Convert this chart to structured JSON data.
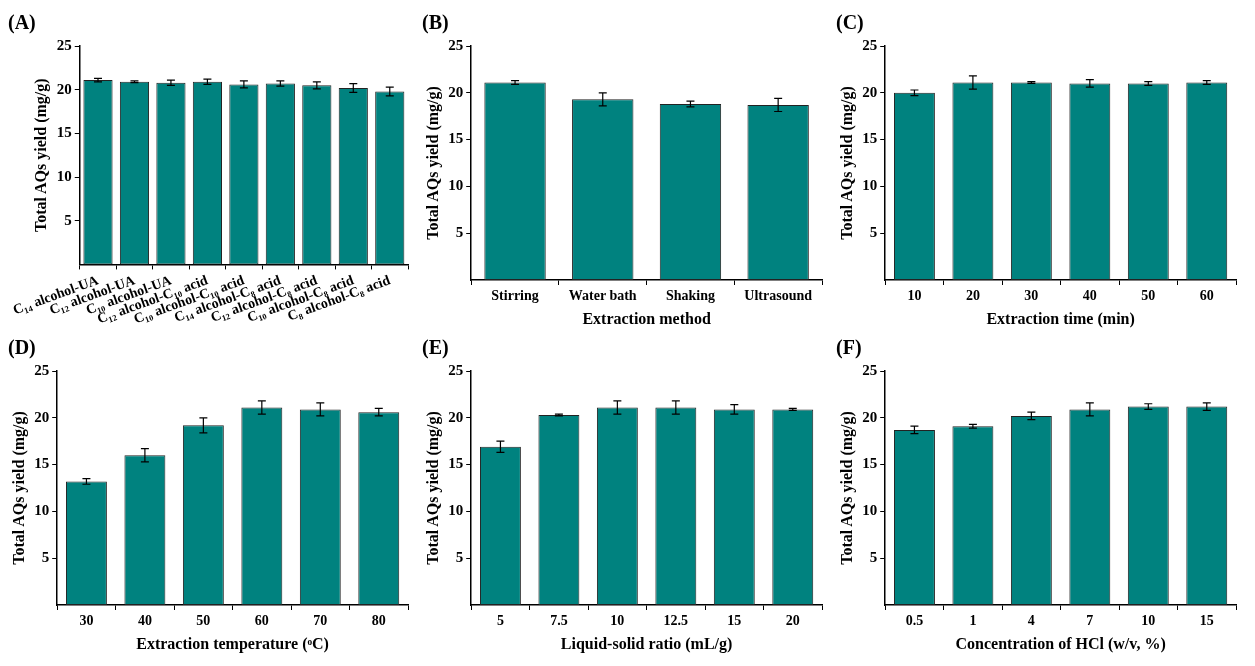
{
  "chart_data": [
    {
      "type": "bar",
      "title": "(A)",
      "ylabel": "Total AQs yield (mg/g)",
      "categories": [
        "C₁₄ alcohol-UA",
        "C₁₂ alcohol-UA",
        "C₁₀ alcohol-UA",
        "C₁₂ alcohol-C₁₀ acid",
        "C₁₀ alcohol-C₁₀ acid",
        "C₁₄ alcohol-C₈ acid",
        "C₁₂ alcohol-C₈ acid",
        "C₁₀ alcohol-C₈ acid",
        "C₈ alcohol-C₈ acid"
      ],
      "values": [
        21.1,
        20.9,
        20.8,
        20.9,
        20.6,
        20.7,
        20.5,
        20.2,
        19.8
      ],
      "errors": [
        0.2,
        0.1,
        0.3,
        0.3,
        0.4,
        0.3,
        0.4,
        0.5,
        0.5
      ],
      "color": "#00827f",
      "ylim": [
        0,
        25
      ],
      "yticks": [
        5,
        10,
        15,
        20,
        25
      ],
      "grid": false,
      "legend": false
    },
    {
      "type": "bar",
      "title": "(B)",
      "ylabel": "Total AQs yield (mg/g)",
      "xlabel": "Extraction method",
      "categories": [
        "Stirring",
        "Water bath",
        "Shaking",
        "Ultrasound"
      ],
      "values": [
        21.1,
        19.3,
        18.8,
        18.7
      ],
      "errors": [
        0.2,
        0.7,
        0.3,
        0.7
      ],
      "color": "#00827f",
      "ylim": [
        0,
        25
      ],
      "yticks": [
        5,
        10,
        15,
        20,
        25
      ],
      "grid": false,
      "legend": false
    },
    {
      "type": "bar",
      "title": "(C)",
      "ylabel": "Total AQs yield (mg/g)",
      "xlabel": "Extraction time (min)",
      "categories": [
        "10",
        "20",
        "30",
        "40",
        "50",
        "60"
      ],
      "values": [
        20.0,
        21.1,
        21.1,
        21.0,
        21.0,
        21.1
      ],
      "errors": [
        0.3,
        0.7,
        0.1,
        0.4,
        0.2,
        0.2
      ],
      "color": "#00827f",
      "ylim": [
        0,
        25
      ],
      "yticks": [
        5,
        10,
        15,
        20,
        25
      ],
      "grid": false,
      "legend": false
    },
    {
      "type": "bar",
      "title": "(D)",
      "ylabel": "Total AQs yield (mg/g)",
      "xlabel": "Extraction temperature (ᵒC)",
      "categories": [
        "30",
        "40",
        "50",
        "60",
        "70",
        "80"
      ],
      "values": [
        13.2,
        16.0,
        19.2,
        21.1,
        20.9,
        20.6
      ],
      "errors": [
        0.3,
        0.7,
        0.8,
        0.7,
        0.7,
        0.4
      ],
      "color": "#00827f",
      "ylim": [
        0,
        25
      ],
      "yticks": [
        5,
        10,
        15,
        20,
        25
      ],
      "grid": false,
      "legend": false
    },
    {
      "type": "bar",
      "title": "(E)",
      "ylabel": "Total AQs yield (mg/g)",
      "xlabel": "Liquid-solid ratio (mL/g)",
      "categories": [
        "5",
        "7.5",
        "10",
        "12.5",
        "15",
        "20"
      ],
      "values": [
        16.9,
        20.3,
        21.1,
        21.1,
        20.9,
        20.9
      ],
      "errors": [
        0.6,
        0.1,
        0.7,
        0.7,
        0.5,
        0.1
      ],
      "color": "#00827f",
      "ylim": [
        0,
        25
      ],
      "yticks": [
        5,
        10,
        15,
        20,
        25
      ],
      "grid": false,
      "legend": false
    },
    {
      "type": "bar",
      "title": "(F)",
      "ylabel": "Total AQs yield (mg/g)",
      "xlabel": "Concentration of HCl (w/v, %)",
      "categories": [
        "0.5",
        "1",
        "4",
        "7",
        "10",
        "15"
      ],
      "values": [
        18.7,
        19.1,
        20.2,
        20.9,
        21.2,
        21.2
      ],
      "errors": [
        0.4,
        0.2,
        0.4,
        0.7,
        0.3,
        0.4
      ],
      "color": "#00827f",
      "ylim": [
        0,
        25
      ],
      "yticks": [
        5,
        10,
        15,
        20,
        25
      ],
      "grid": false,
      "legend": false
    }
  ]
}
